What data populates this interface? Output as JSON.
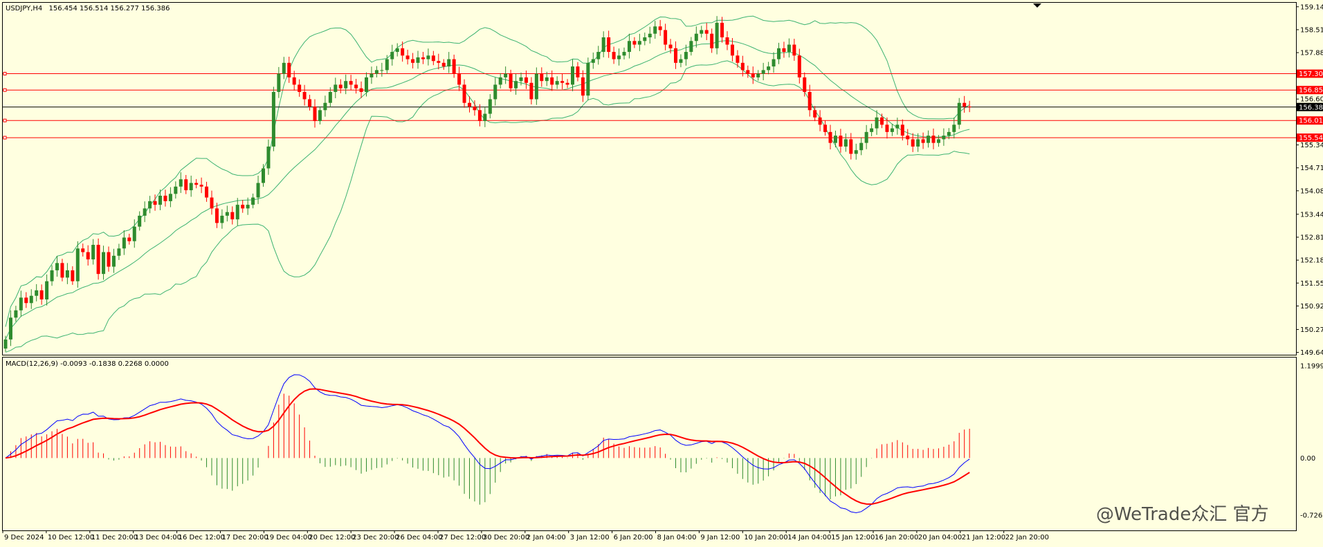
{
  "header": {
    "symbol": "USDJPY,H4",
    "ohlc": "156.454 156.514 156.277 156.386"
  },
  "macd": {
    "label": "MACD(12,26,9) -0.0093 -0.1838 0.2268 0.0000",
    "axis_labels": [
      "1.1999",
      "0.00",
      "-0.726"
    ],
    "range": [
      -0.9,
      1.25
    ]
  },
  "watermark": "@WeTrade众汇 官方",
  "colors": {
    "background": "#ffffe0",
    "bull": "#2e8b2e",
    "bear": "#ff0000",
    "bands": "#3cb371",
    "macd_line": "#0000ff",
    "signal_line": "#ff0000",
    "level_line": "#ff0000",
    "current_price_line": "#000000"
  },
  "chart_data": {
    "type": "candlestick",
    "timeframe": "H4",
    "ylim": [
      149.58,
      159.25
    ],
    "price_axis_labels": [
      "159.140",
      "158.510",
      "157.880",
      "156.605",
      "155.975",
      "155.345",
      "154.715",
      "154.085",
      "153.440",
      "152.810",
      "152.180",
      "151.550",
      "150.920",
      "150.275",
      "149.645"
    ],
    "x_axis_labels": [
      "9 Dec 2024",
      "10 Dec 12:00",
      "11 Dec 20:00",
      "13 Dec 04:00",
      "16 Dec 12:00",
      "17 Dec 20:00",
      "19 Dec 04:00",
      "20 Dec 12:00",
      "23 Dec 20:00",
      "26 Dec 04:00",
      "27 Dec 12:00",
      "30 Dec 20:00",
      "2 Jan 04:00",
      "3 Jan 12:00",
      "6 Jan 20:00",
      "8 Jan 04:00",
      "9 Jan 12:00",
      "10 Jan 20:00",
      "14 Jan 04:00",
      "15 Jan 12:00",
      "16 Jan 20:00",
      "20 Jan 04:00",
      "21 Jan 12:00",
      "22 Jan 20:00"
    ],
    "levels": [
      {
        "price": 157.302,
        "label": "157.302"
      },
      {
        "price": 156.852,
        "label": "156.852"
      },
      {
        "price": 156.016,
        "label": "156.016"
      },
      {
        "price": 155.544,
        "label": "155.544"
      }
    ],
    "current_price": {
      "price": 156.386,
      "label": "156.386"
    },
    "closes": [
      150.0,
      150.6,
      150.8,
      151.15,
      151.0,
      151.2,
      151.35,
      151.1,
      151.6,
      151.9,
      152.1,
      151.7,
      151.9,
      151.6,
      152.5,
      152.4,
      152.2,
      152.6,
      151.8,
      152.4,
      152.0,
      152.3,
      152.5,
      152.8,
      152.7,
      153.1,
      153.4,
      153.6,
      153.8,
      153.7,
      153.95,
      153.8,
      154.0,
      154.2,
      154.4,
      154.1,
      154.3,
      154.25,
      154.2,
      153.9,
      153.6,
      153.2,
      153.4,
      153.5,
      153.3,
      153.7,
      153.6,
      153.7,
      153.9,
      154.3,
      154.7,
      155.3,
      156.8,
      157.3,
      157.6,
      157.2,
      157.0,
      156.8,
      156.6,
      156.4,
      156.0,
      156.3,
      156.5,
      156.8,
      157.0,
      156.9,
      157.1,
      157.0,
      156.9,
      156.8,
      157.2,
      157.3,
      157.4,
      157.4,
      157.7,
      157.9,
      158.0,
      157.8,
      157.7,
      157.6,
      157.75,
      157.7,
      157.8,
      157.65,
      157.6,
      157.5,
      157.7,
      157.3,
      157.0,
      156.5,
      156.4,
      156.3,
      156.0,
      156.2,
      156.6,
      157.0,
      157.2,
      157.3,
      156.9,
      157.1,
      157.2,
      157.05,
      156.6,
      157.3,
      157.1,
      157.2,
      157.0,
      157.1,
      157.05,
      157.0,
      157.5,
      157.2,
      156.7,
      157.6,
      157.7,
      157.9,
      158.3,
      157.9,
      157.7,
      157.8,
      157.9,
      158.2,
      158.1,
      158.2,
      158.3,
      158.4,
      158.6,
      158.5,
      158.1,
      158.0,
      157.6,
      157.7,
      157.9,
      158.2,
      158.4,
      158.5,
      158.4,
      158.0,
      158.7,
      158.3,
      158.1,
      157.8,
      157.6,
      157.4,
      157.3,
      157.2,
      157.3,
      157.4,
      157.5,
      157.7,
      158.0,
      157.9,
      158.1,
      157.8,
      157.2,
      156.8,
      156.3,
      156.1,
      155.9,
      155.7,
      155.4,
      155.6,
      155.3,
      155.5,
      155.1,
      155.2,
      155.4,
      155.7,
      155.8,
      156.1,
      155.9,
      155.7,
      155.8,
      155.9,
      155.6,
      155.5,
      155.3,
      155.5,
      155.4,
      155.6,
      155.4,
      155.5,
      155.6,
      155.7,
      155.9,
      156.5,
      156.4,
      156.386
    ]
  }
}
